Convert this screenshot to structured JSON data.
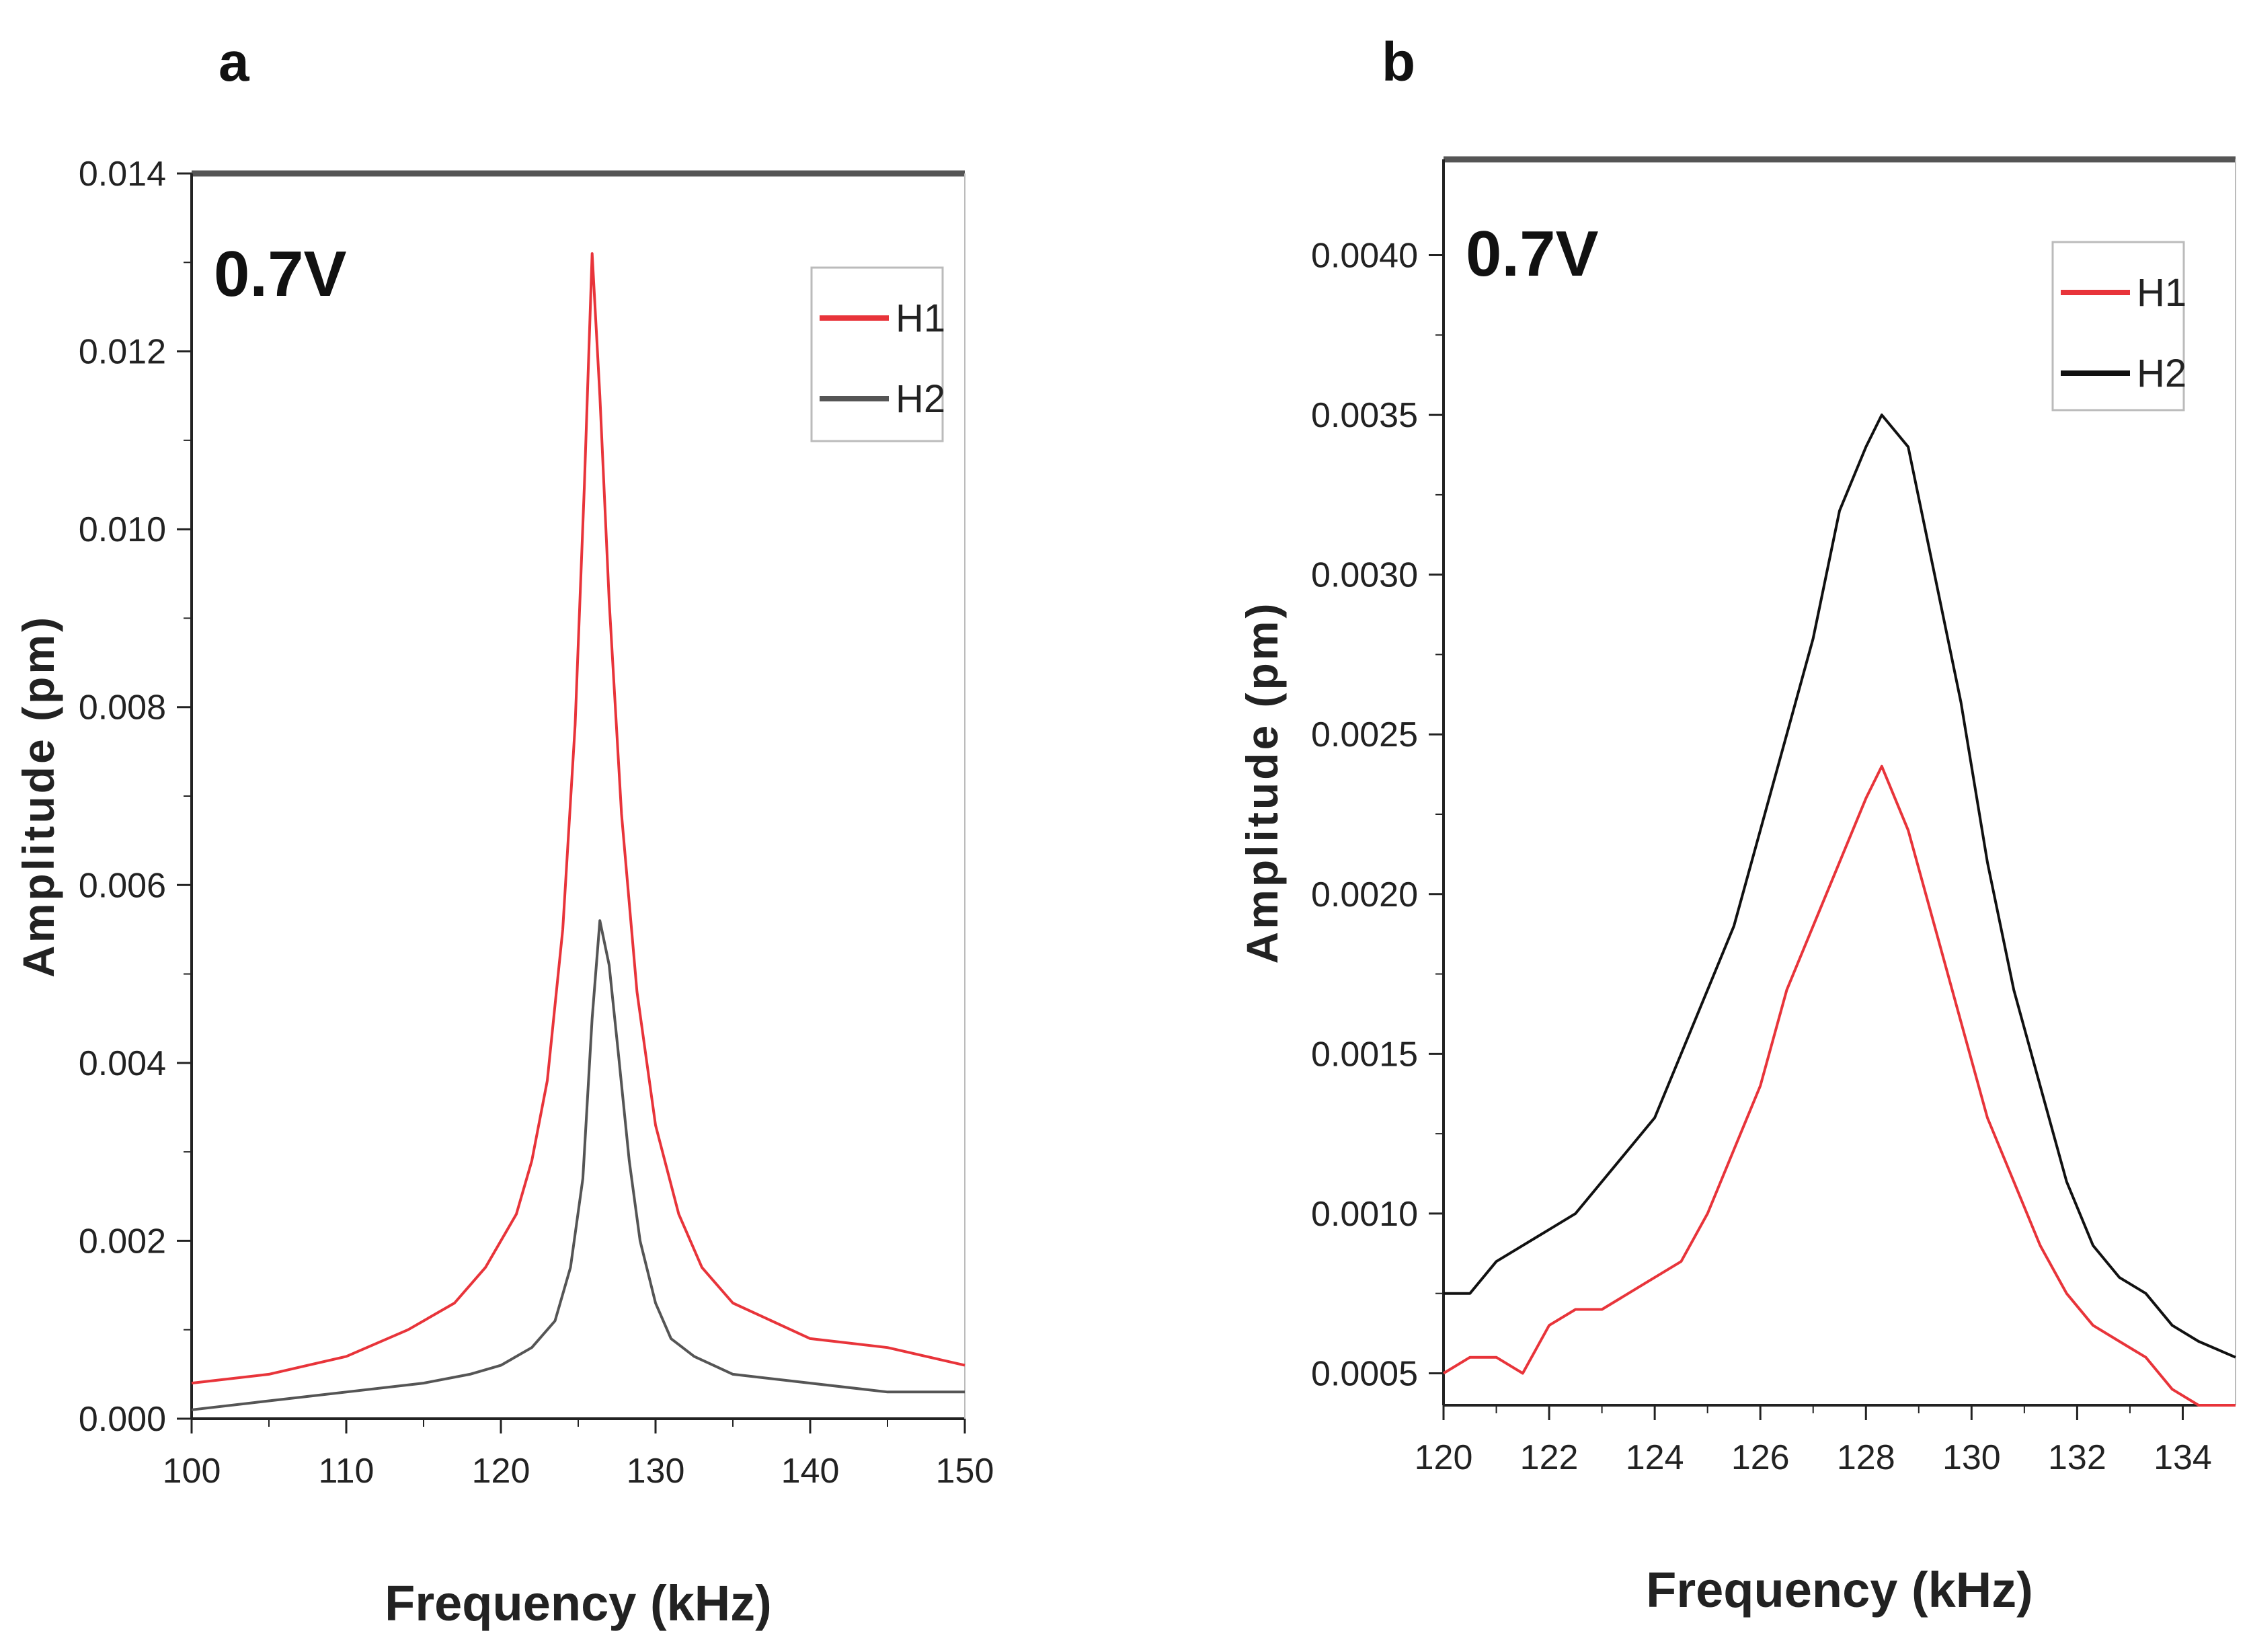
{
  "chart_data": [
    {
      "panel": "a",
      "type": "line",
      "annotation": "0.7V",
      "xlabel": "Frequency (kHz)",
      "ylabel": "Amplitude (pm)",
      "xlim": [
        100,
        150
      ],
      "ylim": [
        0,
        0.014
      ],
      "xticks": [
        100,
        110,
        120,
        130,
        140,
        150
      ],
      "yticks": [
        0.0,
        0.002,
        0.004,
        0.006,
        0.008,
        0.01,
        0.012,
        0.014
      ],
      "ytick_labels": [
        "0.000",
        "0.002",
        "0.004",
        "0.006",
        "0.008",
        "0.010",
        "0.012",
        "0.014"
      ],
      "legend_position": "top-right",
      "series": [
        {
          "name": "H1",
          "color": "#e8343a",
          "x": [
            100,
            105,
            110,
            114,
            117,
            119,
            121,
            122,
            123,
            124,
            124.8,
            125.4,
            125.9,
            126.4,
            127,
            127.8,
            128.8,
            130,
            131.5,
            133,
            135,
            140,
            145,
            150
          ],
          "y": [
            0.0004,
            0.0005,
            0.0007,
            0.001,
            0.0013,
            0.0017,
            0.0023,
            0.0029,
            0.0038,
            0.0055,
            0.0078,
            0.0105,
            0.0131,
            0.0115,
            0.0092,
            0.0068,
            0.0048,
            0.0033,
            0.0023,
            0.0017,
            0.0013,
            0.0009,
            0.0008,
            0.0006
          ]
        },
        {
          "name": "H2",
          "color": "#555555",
          "x": [
            100,
            105,
            110,
            115,
            118,
            120,
            122,
            123.5,
            124.5,
            125.3,
            125.9,
            126.4,
            127,
            127.6,
            128.3,
            129,
            130,
            131,
            132.5,
            135,
            140,
            145,
            150
          ],
          "y": [
            0.0001,
            0.0002,
            0.0003,
            0.0004,
            0.0005,
            0.0006,
            0.0008,
            0.0011,
            0.0017,
            0.0027,
            0.0045,
            0.0056,
            0.0051,
            0.0041,
            0.0029,
            0.002,
            0.0013,
            0.0009,
            0.0007,
            0.0005,
            0.0004,
            0.0003,
            0.0003
          ]
        }
      ]
    },
    {
      "panel": "b",
      "type": "line",
      "annotation": "0.7V",
      "xlabel": "Frequency (kHz)",
      "ylabel": "Amplitude (pm)",
      "xlim": [
        120,
        135
      ],
      "ylim": [
        0.0004,
        0.0043
      ],
      "xticks": [
        120,
        122,
        124,
        126,
        128,
        130,
        132,
        134
      ],
      "yticks": [
        0.0005,
        0.001,
        0.0015,
        0.002,
        0.0025,
        0.003,
        0.0035,
        0.004
      ],
      "ytick_labels": [
        "0.0005",
        "0.0010",
        "0.0015",
        "0.0020",
        "0.0025",
        "0.0030",
        "0.0035",
        "0.0040"
      ],
      "legend_position": "top-right",
      "series": [
        {
          "name": "H1",
          "color": "#e8343a",
          "x": [
            120,
            120.5,
            121,
            121.5,
            122,
            122.5,
            123,
            123.5,
            124,
            124.5,
            125,
            125.5,
            126,
            126.5,
            127,
            127.5,
            128,
            128.3,
            128.8,
            129.3,
            129.8,
            130.3,
            130.8,
            131.3,
            131.8,
            132.3,
            132.8,
            133.3,
            133.8,
            134.3,
            135
          ],
          "y": [
            0.0005,
            0.00055,
            0.00055,
            0.0005,
            0.00065,
            0.0007,
            0.0007,
            0.00075,
            0.0008,
            0.00085,
            0.001,
            0.0012,
            0.0014,
            0.0017,
            0.0019,
            0.0021,
            0.0023,
            0.0024,
            0.0022,
            0.0019,
            0.0016,
            0.0013,
            0.0011,
            0.0009,
            0.00075,
            0.00065,
            0.0006,
            0.00055,
            0.00045,
            0.0004,
            0.0004
          ]
        },
        {
          "name": "H2",
          "color": "#111111",
          "x": [
            120,
            120.5,
            121,
            121.5,
            122,
            122.5,
            123,
            123.5,
            124,
            124.5,
            125,
            125.5,
            126,
            126.5,
            127,
            127.5,
            128,
            128.3,
            128.8,
            129.3,
            129.8,
            130.3,
            130.8,
            131.3,
            131.8,
            132.3,
            132.8,
            133.3,
            133.8,
            134.3,
            135
          ],
          "y": [
            0.00075,
            0.00075,
            0.00085,
            0.0009,
            0.00095,
            0.001,
            0.0011,
            0.0012,
            0.0013,
            0.0015,
            0.0017,
            0.0019,
            0.0022,
            0.0025,
            0.0028,
            0.0032,
            0.0034,
            0.0035,
            0.0034,
            0.003,
            0.0026,
            0.0021,
            0.0017,
            0.0014,
            0.0011,
            0.0009,
            0.0008,
            0.00075,
            0.00065,
            0.0006,
            0.00055
          ]
        }
      ]
    }
  ]
}
